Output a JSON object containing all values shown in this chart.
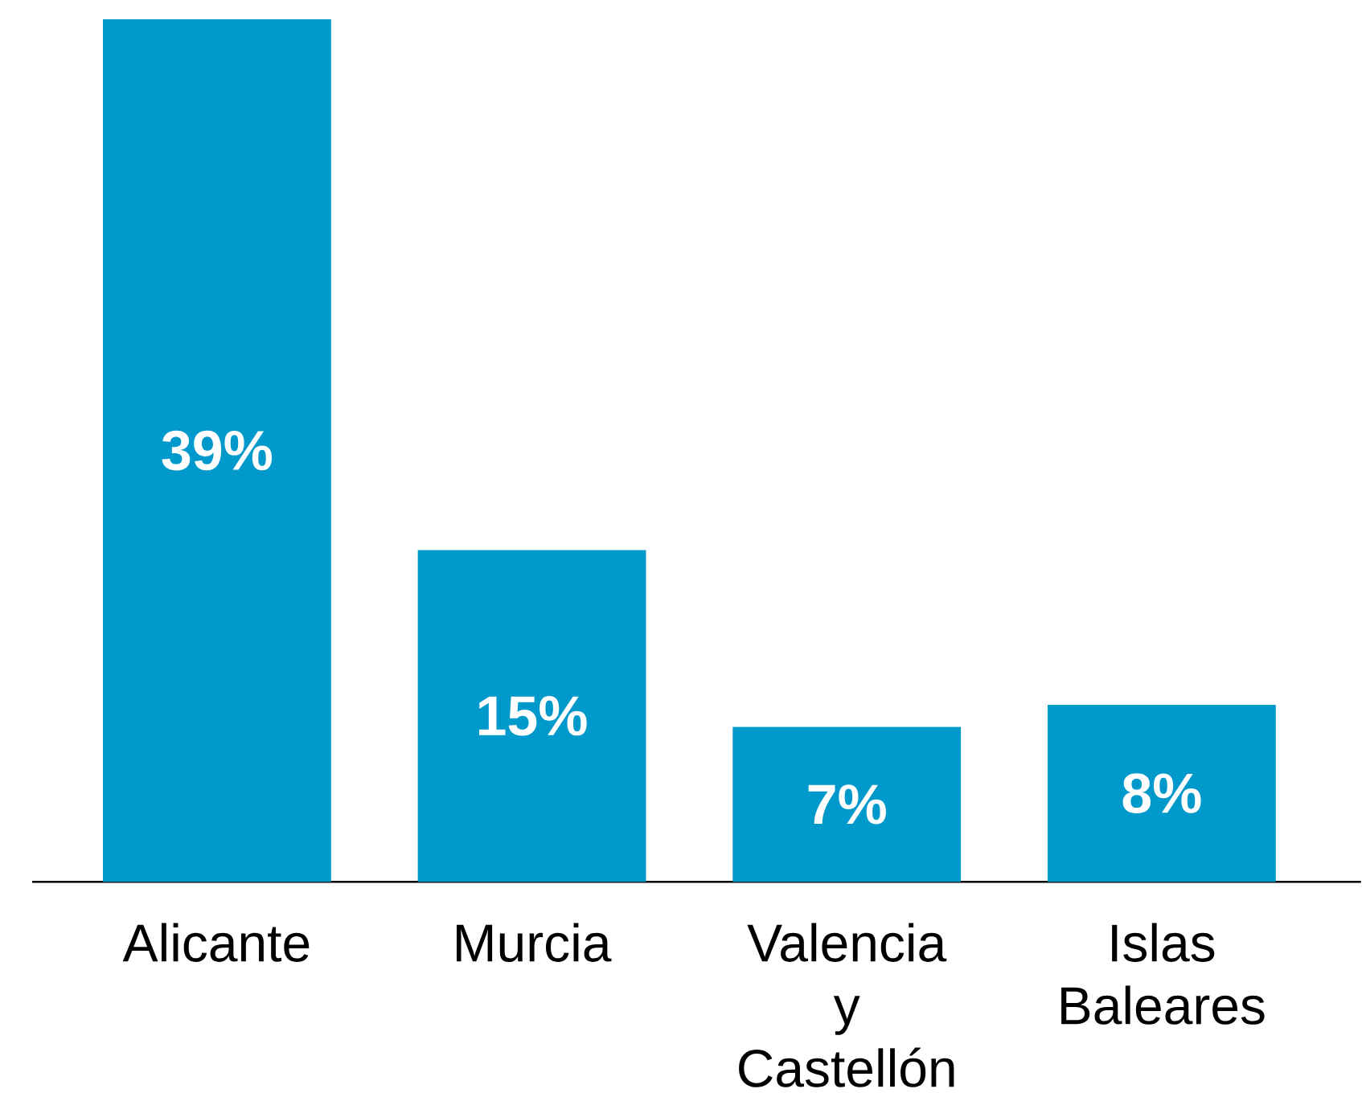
{
  "chart_data": {
    "type": "bar",
    "categories": [
      "Alicante",
      "Murcia",
      "Valencia y Castellón",
      "Islas Baleares"
    ],
    "values": [
      39,
      15,
      7,
      8
    ],
    "color": "#0099cc",
    "value_labels": [
      "39%",
      "15%",
      "7%",
      "8%"
    ]
  }
}
